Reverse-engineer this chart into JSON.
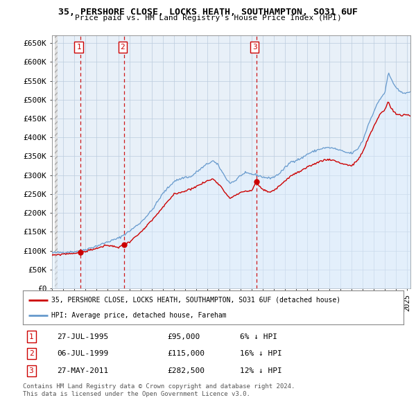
{
  "title": "35, PERSHORE CLOSE, LOCKS HEATH, SOUTHAMPTON, SO31 6UF",
  "subtitle": "Price paid vs. HM Land Registry's House Price Index (HPI)",
  "ylabel_ticks": [
    "£0",
    "£50K",
    "£100K",
    "£150K",
    "£200K",
    "£250K",
    "£300K",
    "£350K",
    "£400K",
    "£450K",
    "£500K",
    "£550K",
    "£600K",
    "£650K"
  ],
  "ytick_values": [
    0,
    50000,
    100000,
    150000,
    200000,
    250000,
    300000,
    350000,
    400000,
    450000,
    500000,
    550000,
    600000,
    650000
  ],
  "ylim": [
    0,
    670000
  ],
  "xlim_start": 1993.25,
  "xlim_end": 2025.3,
  "transactions": [
    {
      "num": 1,
      "date_label": "27-JUL-1995",
      "price": 95000,
      "pct": "6%",
      "year": 1995.56
    },
    {
      "num": 2,
      "date_label": "06-JUL-1999",
      "price": 115000,
      "pct": "16%",
      "year": 1999.51
    },
    {
      "num": 3,
      "date_label": "27-MAY-2011",
      "price": 282500,
      "pct": "12%",
      "year": 2011.4
    }
  ],
  "legend_line1": "35, PERSHORE CLOSE, LOCKS HEATH, SOUTHAMPTON, SO31 6UF (detached house)",
  "legend_line2": "HPI: Average price, detached house, Fareham",
  "footer1": "Contains HM Land Registry data © Crown copyright and database right 2024.",
  "footer2": "This data is licensed under the Open Government Licence v3.0.",
  "red_color": "#cc0000",
  "blue_color": "#6699cc",
  "blue_fill_color": "#ddeeff",
  "grid_color": "#bbccdd",
  "hatch_color": "#cccccc"
}
